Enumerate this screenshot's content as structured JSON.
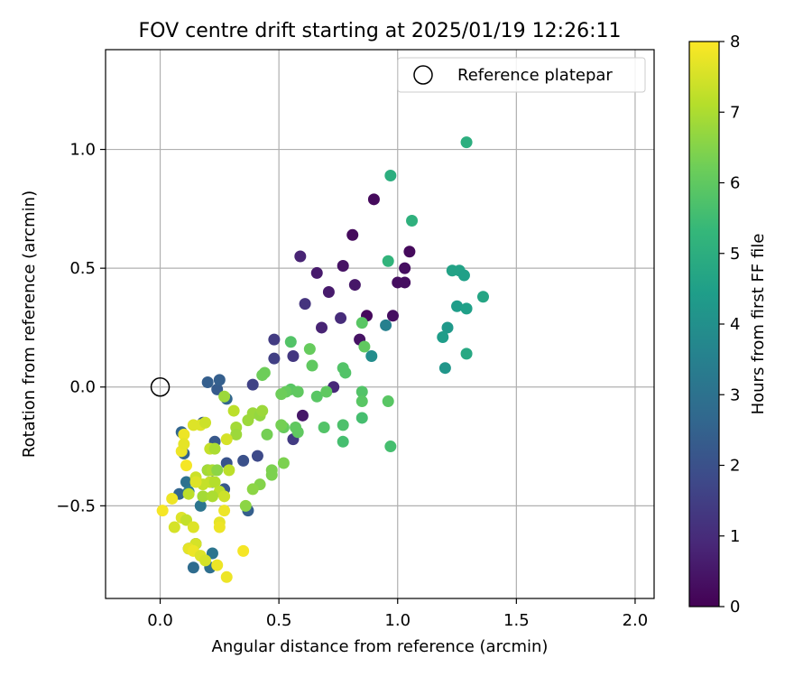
{
  "chart_data": {
    "type": "scatter",
    "title": "FOV centre drift starting at 2025/01/19 12:26:11",
    "xlabel": "Angular distance from reference (arcmin)",
    "ylabel": "Rotation from reference (arcmin)",
    "xlim": [
      -0.23,
      2.08
    ],
    "ylim": [
      -0.89,
      1.42
    ],
    "xticks": [
      0.0,
      0.5,
      1.0,
      1.5,
      2.0
    ],
    "xtick_labels": [
      "0.0",
      "0.5",
      "1.0",
      "1.5",
      "2.0"
    ],
    "yticks": [
      -0.5,
      0.0,
      0.5,
      1.0
    ],
    "ytick_labels": [
      "−0.5",
      "0.0",
      "0.5",
      "1.0"
    ],
    "grid": true,
    "legend": {
      "placement": "top-right",
      "entries": [
        "Reference platepar"
      ]
    },
    "reference_point": {
      "x": 0.0,
      "y": 0.0,
      "label": "Reference platepar"
    },
    "colorbar": {
      "label": "Hours from first FF file",
      "colormap": "viridis",
      "range": [
        0,
        8
      ],
      "ticks": [
        0,
        1,
        2,
        3,
        4,
        5,
        6,
        7,
        8
      ],
      "tick_labels": [
        "0",
        "1",
        "2",
        "3",
        "4",
        "5",
        "6",
        "7",
        "8"
      ],
      "colors": [
        "#440154",
        "#482878",
        "#3e4989",
        "#31688e",
        "#26828e",
        "#1f9e89",
        "#35b779",
        "#6ece58",
        "#b5de2b",
        "#fde725"
      ]
    },
    "points": [
      {
        "x": 0.87,
        "y": 0.3,
        "c": 0.2
      },
      {
        "x": 1.05,
        "y": 0.57,
        "c": 0.2
      },
      {
        "x": 1.03,
        "y": 0.44,
        "c": 0.3
      },
      {
        "x": 1.0,
        "y": 0.44,
        "c": 0.3
      },
      {
        "x": 0.98,
        "y": 0.3,
        "c": 0.3
      },
      {
        "x": 1.03,
        "y": 0.5,
        "c": 0.3
      },
      {
        "x": 0.9,
        "y": 0.79,
        "c": 0.2
      },
      {
        "x": 0.81,
        "y": 0.64,
        "c": 0.2
      },
      {
        "x": 0.77,
        "y": 0.51,
        "c": 0.4
      },
      {
        "x": 0.82,
        "y": 0.43,
        "c": 0.5
      },
      {
        "x": 0.84,
        "y": 0.2,
        "c": 0.4
      },
      {
        "x": 0.71,
        "y": 0.4,
        "c": 0.6
      },
      {
        "x": 0.66,
        "y": 0.48,
        "c": 0.6
      },
      {
        "x": 0.59,
        "y": 0.55,
        "c": 0.8
      },
      {
        "x": 0.61,
        "y": 0.35,
        "c": 1.2
      },
      {
        "x": 0.68,
        "y": 0.25,
        "c": 0.8
      },
      {
        "x": 0.76,
        "y": 0.29,
        "c": 1.0
      },
      {
        "x": 0.73,
        "y": 0.0,
        "c": 0.9
      },
      {
        "x": 0.6,
        "y": -0.12,
        "c": 0.5
      },
      {
        "x": 0.56,
        "y": 0.13,
        "c": 1.3
      },
      {
        "x": 0.48,
        "y": 0.2,
        "c": 1.4
      },
      {
        "x": 0.48,
        "y": 0.12,
        "c": 1.5
      },
      {
        "x": 0.56,
        "y": -0.22,
        "c": 1.4
      },
      {
        "x": 0.39,
        "y": 0.01,
        "c": 1.6
      },
      {
        "x": 0.41,
        "y": -0.29,
        "c": 1.8
      },
      {
        "x": 0.28,
        "y": -0.05,
        "c": 2.6
      },
      {
        "x": 0.2,
        "y": 0.02,
        "c": 2.4
      },
      {
        "x": 0.24,
        "y": -0.01,
        "c": 2.3
      },
      {
        "x": 0.25,
        "y": 0.03,
        "c": 2.4
      },
      {
        "x": 0.23,
        "y": -0.23,
        "c": 2.2
      },
      {
        "x": 0.28,
        "y": -0.32,
        "c": 2.1
      },
      {
        "x": 0.35,
        "y": -0.31,
        "c": 2.0
      },
      {
        "x": 0.37,
        "y": -0.52,
        "c": 2.4
      },
      {
        "x": 0.27,
        "y": -0.43,
        "c": 2.2
      },
      {
        "x": 0.09,
        "y": -0.19,
        "c": 2.6
      },
      {
        "x": 0.18,
        "y": -0.15,
        "c": 2.3
      },
      {
        "x": 0.1,
        "y": -0.28,
        "c": 2.5
      },
      {
        "x": 0.11,
        "y": -0.4,
        "c": 3.0
      },
      {
        "x": 0.08,
        "y": -0.45,
        "c": 2.6
      },
      {
        "x": 0.12,
        "y": -0.44,
        "c": 3.3
      },
      {
        "x": 0.2,
        "y": -0.35,
        "c": 3.0
      },
      {
        "x": 0.22,
        "y": -0.4,
        "c": 2.6
      },
      {
        "x": 0.17,
        "y": -0.5,
        "c": 3.1
      },
      {
        "x": 0.14,
        "y": -0.76,
        "c": 2.8
      },
      {
        "x": 0.21,
        "y": -0.76,
        "c": 2.9
      },
      {
        "x": 0.22,
        "y": -0.7,
        "c": 3.1
      },
      {
        "x": 0.15,
        "y": -0.66,
        "c": 3.4
      },
      {
        "x": 0.12,
        "y": -0.68,
        "c": 3.5
      },
      {
        "x": 0.95,
        "y": 0.26,
        "c": 3.5
      },
      {
        "x": 0.89,
        "y": 0.13,
        "c": 3.9
      },
      {
        "x": 1.2,
        "y": 0.08,
        "c": 4.2
      },
      {
        "x": 1.21,
        "y": 0.25,
        "c": 4.3
      },
      {
        "x": 1.19,
        "y": 0.21,
        "c": 4.4
      },
      {
        "x": 1.25,
        "y": 0.34,
        "c": 4.4
      },
      {
        "x": 1.29,
        "y": 0.33,
        "c": 4.5
      },
      {
        "x": 1.23,
        "y": 0.49,
        "c": 4.6
      },
      {
        "x": 1.26,
        "y": 0.49,
        "c": 4.6
      },
      {
        "x": 1.28,
        "y": 0.47,
        "c": 4.5
      },
      {
        "x": 1.36,
        "y": 0.38,
        "c": 4.7
      },
      {
        "x": 1.29,
        "y": 0.14,
        "c": 4.8
      },
      {
        "x": 1.29,
        "y": 1.03,
        "c": 5.0
      },
      {
        "x": 0.97,
        "y": 0.89,
        "c": 5.0
      },
      {
        "x": 1.06,
        "y": 0.7,
        "c": 5.1
      },
      {
        "x": 0.96,
        "y": 0.53,
        "c": 5.2
      },
      {
        "x": 0.85,
        "y": 0.27,
        "c": 5.9
      },
      {
        "x": 0.86,
        "y": 0.17,
        "c": 6.0
      },
      {
        "x": 0.77,
        "y": 0.08,
        "c": 5.8
      },
      {
        "x": 0.78,
        "y": 0.06,
        "c": 5.8
      },
      {
        "x": 0.63,
        "y": 0.16,
        "c": 6.1
      },
      {
        "x": 0.64,
        "y": 0.09,
        "c": 6.0
      },
      {
        "x": 0.55,
        "y": 0.19,
        "c": 5.8
      },
      {
        "x": 0.44,
        "y": 0.06,
        "c": 6.2
      },
      {
        "x": 0.43,
        "y": 0.05,
        "c": 6.2
      },
      {
        "x": 0.55,
        "y": -0.01,
        "c": 5.9
      },
      {
        "x": 0.53,
        "y": -0.02,
        "c": 6.1
      },
      {
        "x": 0.58,
        "y": -0.02,
        "c": 6.0
      },
      {
        "x": 0.51,
        "y": -0.03,
        "c": 6.2
      },
      {
        "x": 0.66,
        "y": -0.04,
        "c": 5.9
      },
      {
        "x": 0.7,
        "y": -0.02,
        "c": 6.0
      },
      {
        "x": 0.85,
        "y": -0.02,
        "c": 5.8
      },
      {
        "x": 0.85,
        "y": -0.06,
        "c": 5.9
      },
      {
        "x": 0.96,
        "y": -0.06,
        "c": 5.9
      },
      {
        "x": 0.85,
        "y": -0.13,
        "c": 5.6
      },
      {
        "x": 0.57,
        "y": -0.17,
        "c": 6.0
      },
      {
        "x": 0.58,
        "y": -0.19,
        "c": 6.0
      },
      {
        "x": 0.52,
        "y": -0.17,
        "c": 6.1
      },
      {
        "x": 0.51,
        "y": -0.16,
        "c": 6.3
      },
      {
        "x": 0.69,
        "y": -0.17,
        "c": 5.8
      },
      {
        "x": 0.77,
        "y": -0.16,
        "c": 5.7
      },
      {
        "x": 0.77,
        "y": -0.23,
        "c": 5.6
      },
      {
        "x": 0.97,
        "y": -0.25,
        "c": 5.6
      },
      {
        "x": 0.45,
        "y": -0.2,
        "c": 6.3
      },
      {
        "x": 0.52,
        "y": -0.32,
        "c": 6.4
      },
      {
        "x": 0.47,
        "y": -0.35,
        "c": 6.4
      },
      {
        "x": 0.47,
        "y": -0.37,
        "c": 6.4
      },
      {
        "x": 0.42,
        "y": -0.41,
        "c": 6.5
      },
      {
        "x": 0.39,
        "y": -0.43,
        "c": 6.6
      },
      {
        "x": 0.36,
        "y": -0.5,
        "c": 6.6
      },
      {
        "x": 0.37,
        "y": -0.14,
        "c": 6.8
      },
      {
        "x": 0.39,
        "y": -0.11,
        "c": 6.8
      },
      {
        "x": 0.42,
        "y": -0.12,
        "c": 6.7
      },
      {
        "x": 0.43,
        "y": -0.1,
        "c": 6.8
      },
      {
        "x": 0.32,
        "y": -0.17,
        "c": 6.9
      },
      {
        "x": 0.32,
        "y": -0.2,
        "c": 6.8
      },
      {
        "x": 0.31,
        "y": -0.1,
        "c": 7.2
      },
      {
        "x": 0.27,
        "y": -0.04,
        "c": 6.8
      },
      {
        "x": 0.28,
        "y": -0.22,
        "c": 7.5
      },
      {
        "x": 0.21,
        "y": -0.26,
        "c": 7.3
      },
      {
        "x": 0.23,
        "y": -0.26,
        "c": 7.0
      },
      {
        "x": 0.2,
        "y": -0.35,
        "c": 6.9
      },
      {
        "x": 0.22,
        "y": -0.35,
        "c": 7.0
      },
      {
        "x": 0.24,
        "y": -0.35,
        "c": 6.6
      },
      {
        "x": 0.29,
        "y": -0.35,
        "c": 7.2
      },
      {
        "x": 0.18,
        "y": -0.41,
        "c": 7.3
      },
      {
        "x": 0.21,
        "y": -0.4,
        "c": 7.3
      },
      {
        "x": 0.23,
        "y": -0.4,
        "c": 7.1
      },
      {
        "x": 0.25,
        "y": -0.44,
        "c": 7.2
      },
      {
        "x": 0.27,
        "y": -0.46,
        "c": 7.4
      },
      {
        "x": 0.12,
        "y": -0.45,
        "c": 7.2
      },
      {
        "x": 0.18,
        "y": -0.46,
        "c": 6.9
      },
      {
        "x": 0.22,
        "y": -0.46,
        "c": 7.0
      },
      {
        "x": 0.17,
        "y": -0.16,
        "c": 7.6
      },
      {
        "x": 0.19,
        "y": -0.15,
        "c": 7.4
      },
      {
        "x": 0.14,
        "y": -0.16,
        "c": 7.6
      },
      {
        "x": 0.15,
        "y": -0.38,
        "c": 7.4
      },
      {
        "x": 0.1,
        "y": -0.2,
        "c": 7.8
      },
      {
        "x": 0.09,
        "y": -0.27,
        "c": 7.8
      },
      {
        "x": 0.1,
        "y": -0.24,
        "c": 7.7
      },
      {
        "x": 0.11,
        "y": -0.33,
        "c": 7.9
      },
      {
        "x": 0.15,
        "y": -0.4,
        "c": 7.6
      },
      {
        "x": 0.05,
        "y": -0.47,
        "c": 7.8
      },
      {
        "x": 0.01,
        "y": -0.52,
        "c": 7.9
      },
      {
        "x": 0.09,
        "y": -0.55,
        "c": 7.6
      },
      {
        "x": 0.11,
        "y": -0.56,
        "c": 7.3
      },
      {
        "x": 0.06,
        "y": -0.59,
        "c": 7.5
      },
      {
        "x": 0.14,
        "y": -0.59,
        "c": 7.6
      },
      {
        "x": 0.27,
        "y": -0.52,
        "c": 7.8
      },
      {
        "x": 0.25,
        "y": -0.57,
        "c": 7.7
      },
      {
        "x": 0.25,
        "y": -0.59,
        "c": 7.8
      },
      {
        "x": 0.15,
        "y": -0.66,
        "c": 7.5
      },
      {
        "x": 0.12,
        "y": -0.68,
        "c": 7.7
      },
      {
        "x": 0.14,
        "y": -0.69,
        "c": 7.8
      },
      {
        "x": 0.17,
        "y": -0.71,
        "c": 7.6
      },
      {
        "x": 0.19,
        "y": -0.73,
        "c": 7.5
      },
      {
        "x": 0.24,
        "y": -0.75,
        "c": 7.8
      },
      {
        "x": 0.35,
        "y": -0.69,
        "c": 7.9
      },
      {
        "x": 0.28,
        "y": -0.8,
        "c": 7.8
      }
    ]
  }
}
